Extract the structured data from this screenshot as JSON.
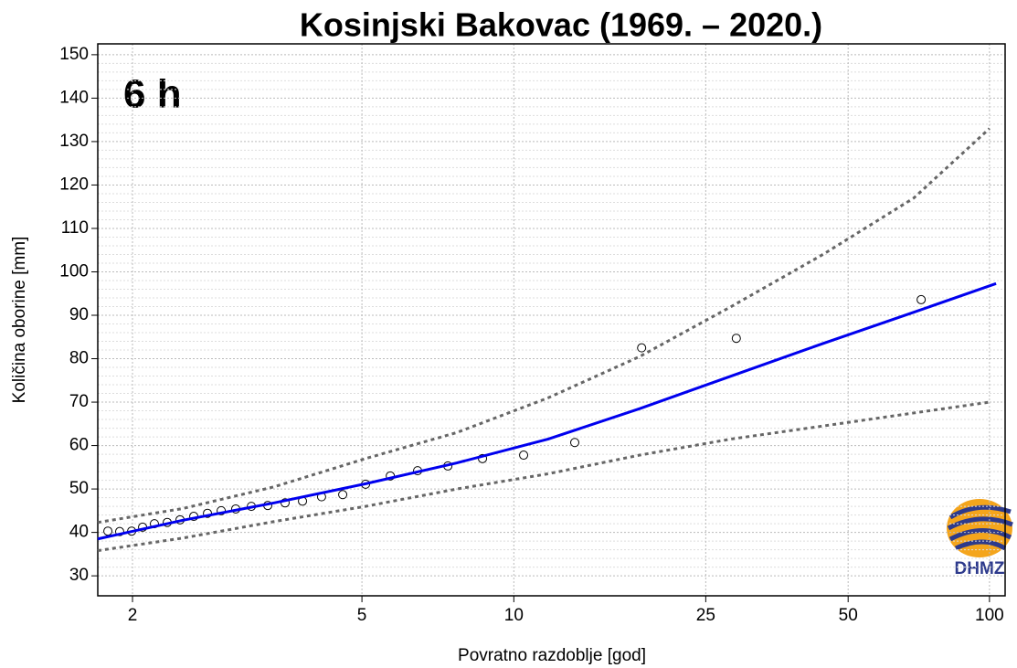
{
  "chart_data": {
    "type": "line",
    "title": "Kosinjski Bakovac (1969. – 2020.)",
    "annotation": "6 h",
    "x_label": "Povratno razdoblje [god]",
    "y_label": "Količina oborine [mm]",
    "logo_text": "DHMZ",
    "x_scale": "gumbel",
    "xlim": [
      1.783,
      108
    ],
    "xticks": [
      2,
      5,
      10,
      25,
      50,
      100
    ],
    "ylim": [
      25.4,
      152.5
    ],
    "yticks": [
      30,
      40,
      50,
      60,
      70,
      80,
      90,
      100,
      110,
      120,
      130,
      140,
      150
    ],
    "grid": true,
    "series": [
      {
        "kind": "points",
        "color": "#000000",
        "x": [
          1.842,
          1.915,
          1.994,
          2.071,
          2.159,
          2.261,
          2.37,
          2.495,
          2.629,
          2.773,
          2.937,
          3.127,
          3.344,
          3.593,
          3.866,
          4.194,
          4.596,
          5.081,
          5.672,
          6.414,
          7.364,
          8.64,
          10.47,
          13.33,
          18.35,
          28.99,
          71.5
        ],
        "values": [
          40.3,
          40.2,
          40.3,
          41.2,
          42,
          42.3,
          42.9,
          43.7,
          44.4,
          45,
          45.4,
          46,
          46.2,
          46.8,
          47.2,
          48.2,
          48.7,
          51.1,
          53,
          54.2,
          55.3,
          57,
          57.8,
          60.7,
          82.5,
          84.7,
          93.6
        ]
      },
      {
        "kind": "line",
        "color": "#0000ee",
        "dash": false,
        "x": [
          1.783,
          2.395,
          3.433,
          5.081,
          7.675,
          11.76,
          18.18,
          28.27,
          44.2,
          68.96,
          103.3
        ],
        "values": [
          38.5,
          42.8,
          46.8,
          51.2,
          56,
          61.5,
          68.5,
          76,
          83.5,
          90.7,
          97.3
        ]
      },
      {
        "kind": "line",
        "color": "#666666",
        "dash": true,
        "x": [
          1.783,
          2.395,
          3.433,
          5.081,
          7.675,
          11.76,
          18.18,
          28.27,
          44.2,
          68.96,
          100
        ],
        "values": [
          42.3,
          45.5,
          50.5,
          57,
          63,
          71,
          80.5,
          92,
          104,
          117,
          133
        ]
      },
      {
        "kind": "line",
        "color": "#666666",
        "dash": true,
        "x": [
          1.783,
          2.395,
          3.433,
          5.081,
          7.675,
          11.76,
          18.18,
          28.27,
          44.2,
          68.96,
          100
        ],
        "values": [
          35.8,
          38.7,
          42.5,
          46,
          50,
          53.5,
          57.8,
          61.5,
          64.5,
          67.5,
          70
        ]
      }
    ]
  }
}
